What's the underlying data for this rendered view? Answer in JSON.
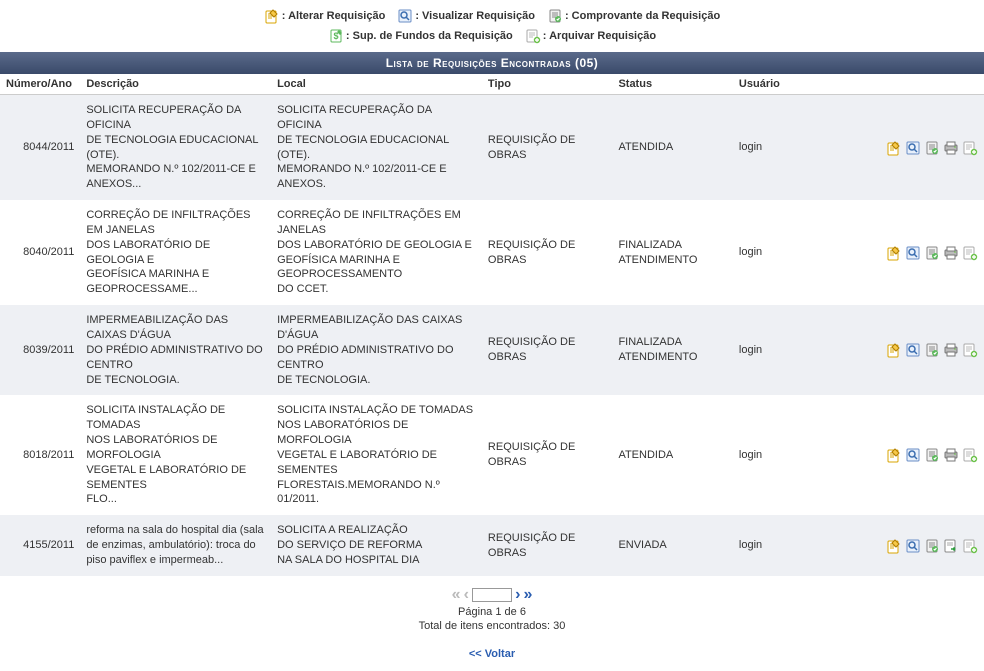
{
  "toolbar": {
    "row1": [
      {
        "icon": "edit",
        "label": ": Alterar Requisição"
      },
      {
        "icon": "view",
        "label": ": Visualizar Requisição"
      },
      {
        "icon": "receipt",
        "label": ": Comprovante da Requisição"
      }
    ],
    "row2": [
      {
        "icon": "funds",
        "label": ": Sup. de Fundos da Requisição"
      },
      {
        "icon": "archive",
        "label": ": Arquivar Requisição"
      }
    ]
  },
  "header_title": "Lista de Requisições Encontradas (05)",
  "columns": {
    "numero": "Número/Ano",
    "descricao": "Descrição",
    "local": "Local",
    "tipo": "Tipo",
    "status": "Status",
    "usuario": "Usuário"
  },
  "rows": [
    {
      "numero": "8044/2011",
      "descricao": "SOLICITA RECUPERAÇÃO DA OFICINA\nDE TECNOLOGIA EDUCACIONAL (OTE).\nMEMORANDO N.º 102/2011-CE E ANEXOS...",
      "local": "SOLICITA RECUPERAÇÃO DA OFICINA\nDE TECNOLOGIA EDUCACIONAL (OTE).\nMEMORANDO N.º 102/2011-CE E ANEXOS.",
      "tipo": "REQUISIÇÃO DE OBRAS",
      "status": "ATENDIDA",
      "usuario": "login",
      "actions": [
        "edit",
        "view",
        "receipt",
        "printer",
        "archive"
      ]
    },
    {
      "numero": "8040/2011",
      "descricao": "CORREÇÃO DE INFILTRAÇÕES EM JANELAS\nDOS LABORATÓRIO DE GEOLOGIA E\nGEOFÍSICA MARINHA E GEOPROCESSAME...",
      "local": "CORREÇÃO DE INFILTRAÇÕES EM JANELAS\nDOS LABORATÓRIO DE GEOLOGIA E\nGEOFÍSICA MARINHA E GEOPROCESSAMENTO\nDO CCET.",
      "tipo": "REQUISIÇÃO DE OBRAS",
      "status": "FINALIZADA ATENDIMENTO",
      "usuario": "login",
      "actions": [
        "edit",
        "view",
        "receipt",
        "printer",
        "archive"
      ]
    },
    {
      "numero": "8039/2011",
      "descricao": "IMPERMEABILIZAÇÃO DAS CAIXAS D'ÁGUA\nDO PRÉDIO ADMINISTRATIVO DO CENTRO\nDE TECNOLOGIA.",
      "local": "IMPERMEABILIZAÇÃO DAS CAIXAS D'ÁGUA\nDO PRÉDIO ADMINISTRATIVO DO CENTRO\nDE TECNOLOGIA.",
      "tipo": "REQUISIÇÃO DE OBRAS",
      "status": "FINALIZADA ATENDIMENTO",
      "usuario": "login",
      "actions": [
        "edit",
        "view",
        "receipt",
        "printer",
        "archive"
      ]
    },
    {
      "numero": "8018/2011",
      "descricao": "SOLICITA INSTALAÇÃO DE TOMADAS\nNOS LABORATÓRIOS DE MORFOLOGIA\nVEGETAL E LABORATÓRIO DE SEMENTES\nFLO...",
      "local": "SOLICITA INSTALAÇÃO DE TOMADAS\nNOS LABORATÓRIOS DE MORFOLOGIA\nVEGETAL E LABORATÓRIO DE SEMENTES\nFLORESTAIS.MEMORANDO N.º 01/2011.",
      "tipo": "REQUISIÇÃO DE OBRAS",
      "status": "ATENDIDA",
      "usuario": "login",
      "actions": [
        "edit",
        "view",
        "receipt",
        "printer",
        "archive"
      ]
    },
    {
      "numero": "4155/2011",
      "descricao": "reforma na sala do hospital dia (sala de enzimas, ambulatório): troca do piso paviflex e impermeab...",
      "local": "SOLICITA A REALIZAÇÃO\nDO SERVIÇO DE REFORMA\n NA SALA DO HOSPITAL DIA",
      "tipo": "REQUISIÇÃO DE OBRAS",
      "status": "ENVIADA",
      "usuario": "login",
      "actions": [
        "edit",
        "view",
        "receipt",
        "send",
        "archive"
      ]
    }
  ],
  "pager": {
    "page_line": "Página 1 de 6",
    "total_line": "Total de itens encontrados: 30",
    "input_value": ""
  },
  "back_link": "<< Voltar",
  "style": {
    "header_bg": "#4a5a7a",
    "alt_row_bg": "#eef0f4",
    "link_color": "#2a5db0",
    "font_family": "Verdana",
    "base_font_size": 11
  }
}
